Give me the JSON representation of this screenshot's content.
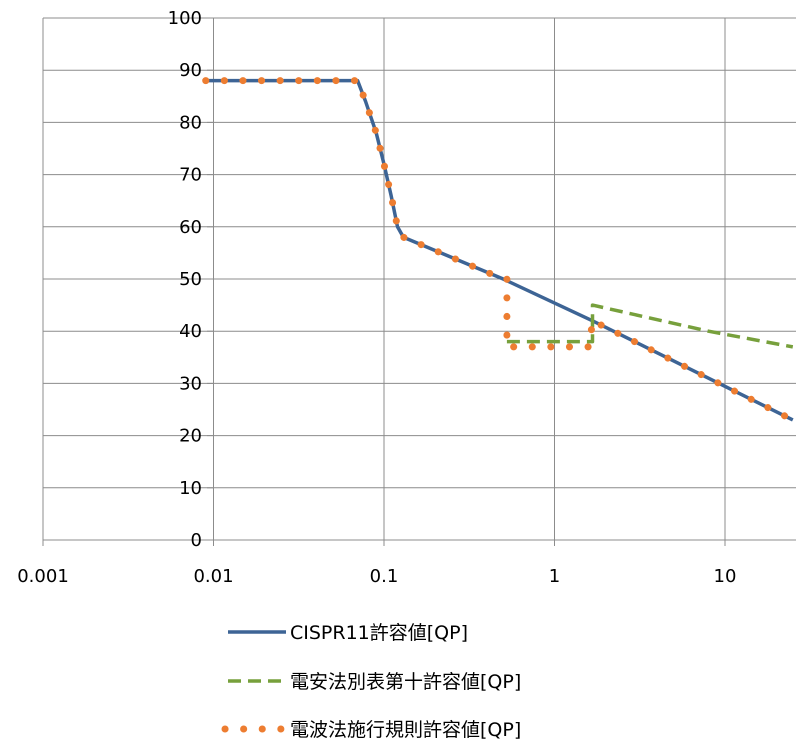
{
  "chart_data": {
    "type": "line",
    "title": "",
    "xlabel": "",
    "ylabel": "",
    "x_scale": "log",
    "xlim": [
      0.001,
      25
    ],
    "ylim": [
      0,
      100
    ],
    "x_ticks": [
      0.001,
      0.01,
      0.1,
      1,
      10
    ],
    "x_tick_labels": [
      "0.001",
      "0.01",
      "0.1",
      "1",
      "10"
    ],
    "y_ticks": [
      0,
      10,
      20,
      30,
      40,
      50,
      60,
      70,
      80,
      90,
      100
    ],
    "y_tick_labels": [
      "0",
      "10",
      "20",
      "30",
      "40",
      "50",
      "60",
      "70",
      "80",
      "90",
      "100"
    ],
    "grid": "horizontal and vertical major gridlines",
    "legend_position": "bottom",
    "series": [
      {
        "name": "CISPR11許容値[QP]",
        "color": "#3d6495",
        "style": "solid",
        "points": [
          [
            0.009,
            88
          ],
          [
            0.07,
            88
          ],
          [
            0.078,
            84
          ],
          [
            0.09,
            78
          ],
          [
            0.1,
            72
          ],
          [
            0.11,
            66
          ],
          [
            0.12,
            60
          ],
          [
            0.13,
            58
          ],
          [
            0.5,
            50
          ],
          [
            1.67,
            42
          ],
          [
            25,
            23
          ]
        ]
      },
      {
        "name": "電安法別表第十許容値[QP]",
        "color": "#77a03c",
        "style": "dashed",
        "points": [
          [
            0.526,
            38
          ],
          [
            1.67,
            38
          ],
          [
            1.67,
            45
          ],
          [
            8,
            40
          ],
          [
            25,
            37
          ]
        ]
      },
      {
        "name": "電波法施行規則許容値[QP]",
        "color": "#ed7d31",
        "style": "dotted",
        "points": [
          [
            0.009,
            88
          ],
          [
            0.07,
            88
          ],
          [
            0.078,
            84
          ],
          [
            0.09,
            78
          ],
          [
            0.1,
            72
          ],
          [
            0.11,
            66
          ],
          [
            0.12,
            60
          ],
          [
            0.13,
            58
          ],
          [
            0.5,
            50
          ],
          [
            0.526,
            50
          ],
          [
            0.526,
            37
          ],
          [
            1.6,
            37
          ],
          [
            1.67,
            42
          ],
          [
            25,
            23
          ]
        ]
      }
    ]
  }
}
